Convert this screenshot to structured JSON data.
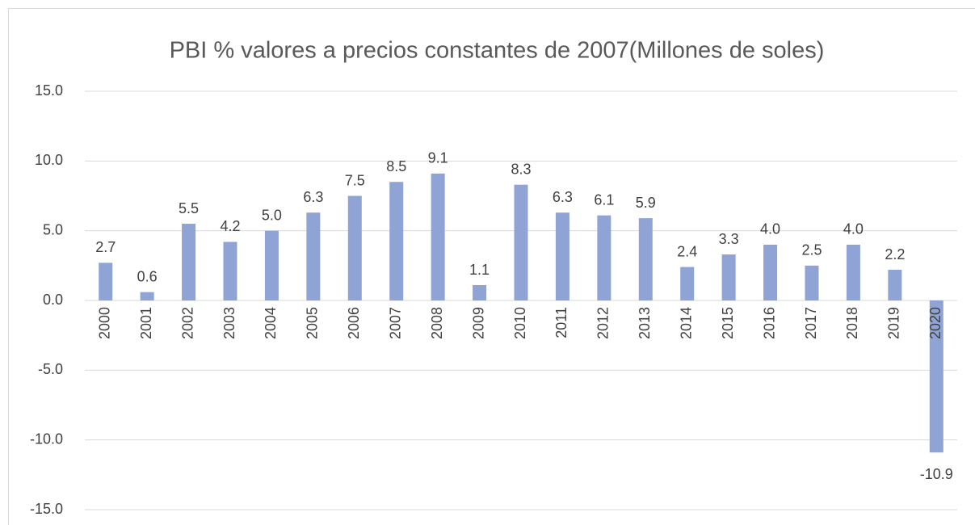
{
  "chart_data": {
    "type": "bar",
    "title": "PBI % valores a precios constantes de 2007(Millones de soles)",
    "categories": [
      "2000",
      "2001",
      "2002",
      "2003",
      "2004",
      "2005",
      "2006",
      "2007",
      "2008",
      "2009",
      "2010",
      "2011",
      "2012",
      "2013",
      "2014",
      "2015",
      "2016",
      "2017",
      "2018",
      "2019",
      "2020"
    ],
    "values": [
      2.7,
      0.6,
      5.5,
      4.2,
      5.0,
      6.3,
      7.5,
      8.5,
      9.1,
      1.1,
      8.3,
      6.3,
      6.1,
      5.9,
      2.4,
      3.3,
      4.0,
      2.5,
      4.0,
      2.2,
      -10.9
    ],
    "value_labels": [
      "2.7",
      "0.6",
      "5.5",
      "4.2",
      "5.0",
      "6.3",
      "7.5",
      "8.5",
      "9.1",
      "1.1",
      "8.3",
      "6.3",
      "6.1",
      "5.9",
      "2.4",
      "3.3",
      "4.0",
      "2.5",
      "4.0",
      "2.2",
      "-10.9"
    ],
    "color": "#8fa4d5",
    "ylim": [
      -15,
      15
    ],
    "yticks": [
      {
        "value": -15,
        "label": "-15.0"
      },
      {
        "value": -10,
        "label": "-10.0"
      },
      {
        "value": -5,
        "label": "-5.0"
      },
      {
        "value": 0,
        "label": "0.0"
      },
      {
        "value": 5,
        "label": "5.0"
      },
      {
        "value": 10,
        "label": "10.0"
      },
      {
        "value": 15,
        "label": "15.0"
      }
    ],
    "grid": true
  }
}
